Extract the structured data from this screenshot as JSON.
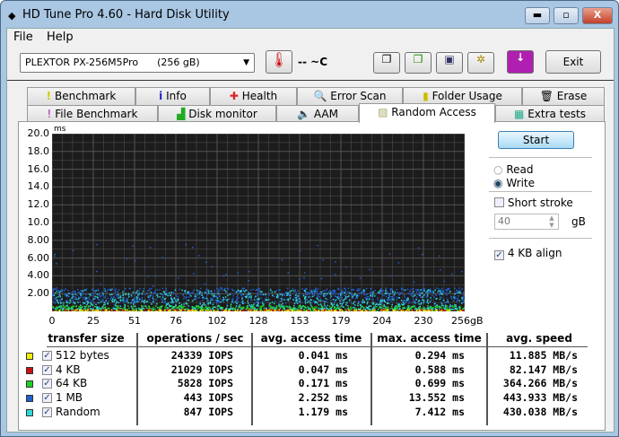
{
  "window": {
    "title": "HD Tune Pro 4.60 - Hard Disk Utility",
    "controls": [
      "minimize",
      "maximize",
      "close"
    ]
  },
  "menu": [
    "File",
    "Help"
  ],
  "toolbar": {
    "drive": "PLEXTOR PX-256M5Pro      (256 gB)",
    "temperature": "-- ~C",
    "exit": "Exit",
    "icons": [
      "copy-text-icon",
      "copy-image-icon",
      "save-icon",
      "settings-icon",
      "download-icon"
    ]
  },
  "tabs_row1": [
    "Benchmark",
    "Info",
    "Health",
    "Error Scan",
    "Folder Usage",
    "Erase"
  ],
  "tabs_row2": [
    "File Benchmark",
    "Disk monitor",
    "AAM",
    "Random Access",
    "Extra tests"
  ],
  "active_tab": "Random Access",
  "side": {
    "start": "Start",
    "read": "Read",
    "write": "Write",
    "mode": "Write",
    "short_stroke": "Short stroke",
    "short_stroke_checked": false,
    "stroke_value": "40",
    "stroke_unit": "gB",
    "align": "4 KB align",
    "align_checked": true
  },
  "chart_data": {
    "type": "scatter",
    "ylabel": "ms",
    "ylim": [
      0,
      20
    ],
    "yticks": [
      "20.0",
      "18.0",
      "16.0",
      "14.0",
      "12.0",
      "10.0",
      "8.00",
      "6.00",
      "4.00",
      "2.00"
    ],
    "xticks": [
      "0",
      "25",
      "51",
      "76",
      "102",
      "128",
      "153",
      "179",
      "204",
      "230",
      "256gB"
    ],
    "xlim": [
      0,
      256
    ],
    "grid": true,
    "background": "#1c1c1c"
  },
  "table": {
    "headers": [
      "transfer size",
      "operations / sec",
      "avg. access time",
      "max. access time",
      "avg. speed"
    ],
    "rows": [
      {
        "label": "512 bytes",
        "color": "#f0f000",
        "checked": true,
        "ops": "24339 IOPS",
        "avg": "0.041 ms",
        "max": "0.294 ms",
        "speed": "11.885 MB/s"
      },
      {
        "label": "4 KB",
        "color": "#cc1010",
        "checked": true,
        "ops": "21029 IOPS",
        "avg": "0.047 ms",
        "max": "0.588 ms",
        "speed": "82.147 MB/s"
      },
      {
        "label": "64 KB",
        "color": "#20d020",
        "checked": true,
        "ops": "5828 IOPS",
        "avg": "0.171 ms",
        "max": "0.699 ms",
        "speed": "364.266 MB/s"
      },
      {
        "label": "1 MB",
        "color": "#2060d0",
        "checked": true,
        "ops": "443 IOPS",
        "avg": "2.252 ms",
        "max": "13.552 ms",
        "speed": "443.933 MB/s"
      },
      {
        "label": "Random",
        "color": "#30d8d8",
        "checked": true,
        "ops": "847 IOPS",
        "avg": "1.179 ms",
        "max": "7.412 ms",
        "speed": "430.038 MB/s"
      }
    ]
  }
}
